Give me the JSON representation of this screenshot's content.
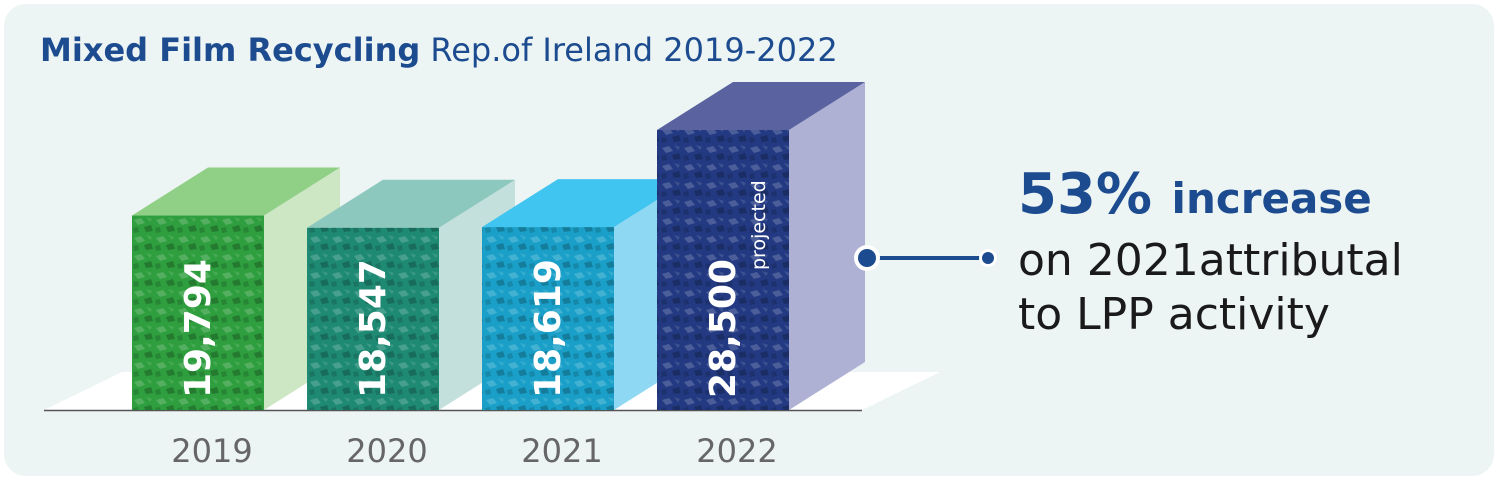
{
  "title": {
    "bold": "Mixed Film Recycling",
    "rest": "Rep.of Ireland 2019-2022"
  },
  "chart_data": {
    "type": "bar",
    "categories": [
      "2019",
      "2020",
      "2021",
      "2022"
    ],
    "values": [
      19794,
      18547,
      18619,
      28500
    ],
    "value_labels": [
      "19,794",
      "18,547",
      "18,619",
      "28,500"
    ],
    "notes": [
      "",
      "",
      "",
      "projected"
    ],
    "colors": {
      "front": [
        "#2e9e3e",
        "#1f8a74",
        "#1aa0c8",
        "#233a82"
      ],
      "top": [
        "#8fcf86",
        "#8dc8be",
        "#40c4f0",
        "#5a63a0"
      ],
      "side": [
        "#cde6c4",
        "#c4e0dc",
        "#8fd8f4",
        "#aeb0d4"
      ]
    },
    "ylim": [
      0,
      28500
    ]
  },
  "callout": {
    "percent": "53%",
    "word": "increase",
    "line1": "on 2021attributal",
    "line2": "to LPP activity"
  },
  "colors": {
    "accent": "#1c4b8f",
    "background": "#ecf4f4"
  }
}
